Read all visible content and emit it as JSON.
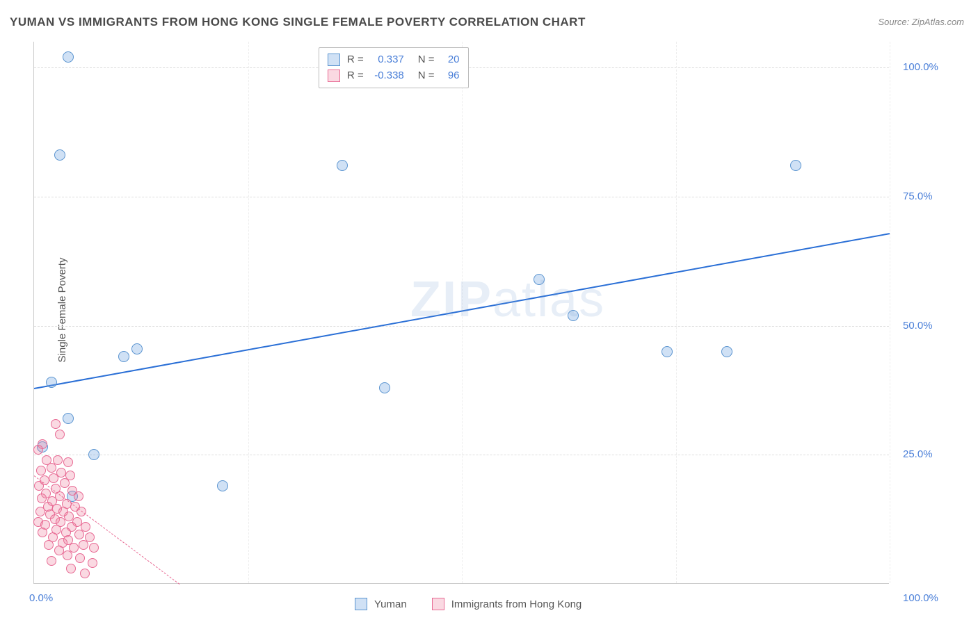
{
  "title": "YUMAN VS IMMIGRANTS FROM HONG KONG SINGLE FEMALE POVERTY CORRELATION CHART",
  "source": "Source: ZipAtlas.com",
  "ylabel": "Single Female Poverty",
  "watermark_bold": "ZIP",
  "watermark_light": "atlas",
  "chart": {
    "type": "scatter",
    "xlim": [
      0,
      100
    ],
    "ylim": [
      0,
      105
    ],
    "background_color": "#ffffff",
    "grid_color": "#dddddd",
    "yticks": [
      {
        "value": 25,
        "label": "25.0%"
      },
      {
        "value": 50,
        "label": "50.0%"
      },
      {
        "value": 75,
        "label": "75.0%"
      },
      {
        "value": 100,
        "label": "100.0%"
      }
    ],
    "xticks": [
      {
        "value": 0,
        "label": "0.0%"
      },
      {
        "value": 100,
        "label": "100.0%"
      }
    ],
    "vgrid_values": [
      25,
      50,
      75,
      100
    ],
    "series": [
      {
        "name": "Yuman",
        "marker_fill": "rgba(120, 170, 225, 0.35)",
        "marker_stroke": "#5a94d0",
        "marker_size": 16,
        "trend": {
          "x1": 0,
          "y1": 38,
          "x2": 100,
          "y2": 68,
          "color": "#2a6fd6",
          "width": 2,
          "dash": false
        },
        "points": [
          {
            "x": 4,
            "y": 102
          },
          {
            "x": 3,
            "y": 83
          },
          {
            "x": 36,
            "y": 81
          },
          {
            "x": 89,
            "y": 81
          },
          {
            "x": 59,
            "y": 59
          },
          {
            "x": 63,
            "y": 52
          },
          {
            "x": 12,
            "y": 45.5
          },
          {
            "x": 10.5,
            "y": 44
          },
          {
            "x": 74,
            "y": 45
          },
          {
            "x": 81,
            "y": 45
          },
          {
            "x": 2,
            "y": 39
          },
          {
            "x": 41,
            "y": 38
          },
          {
            "x": 4,
            "y": 32
          },
          {
            "x": 1,
            "y": 26.5
          },
          {
            "x": 7,
            "y": 25
          },
          {
            "x": 22,
            "y": 19
          },
          {
            "x": 4.5,
            "y": 17
          }
        ]
      },
      {
        "name": "Immigrants from Hong Kong",
        "marker_fill": "rgba(240, 130, 160, 0.30)",
        "marker_stroke": "#e86a94",
        "marker_size": 14,
        "trend": {
          "x1": 0,
          "y1": 21,
          "x2": 17,
          "y2": 0,
          "color": "#e86a94",
          "width": 1,
          "dash": true
        },
        "points": [
          {
            "x": 2.5,
            "y": 31
          },
          {
            "x": 3,
            "y": 29
          },
          {
            "x": 1,
            "y": 27
          },
          {
            "x": 0.5,
            "y": 26
          },
          {
            "x": 1.5,
            "y": 24
          },
          {
            "x": 2.8,
            "y": 24
          },
          {
            "x": 4,
            "y": 23.5
          },
          {
            "x": 0.8,
            "y": 22
          },
          {
            "x": 2,
            "y": 22.5
          },
          {
            "x": 3.2,
            "y": 21.5
          },
          {
            "x": 4.2,
            "y": 21
          },
          {
            "x": 1.2,
            "y": 20
          },
          {
            "x": 2.3,
            "y": 20.5
          },
          {
            "x": 3.6,
            "y": 19.5
          },
          {
            "x": 0.6,
            "y": 19
          },
          {
            "x": 2.5,
            "y": 18.5
          },
          {
            "x": 4.5,
            "y": 18
          },
          {
            "x": 1.4,
            "y": 17.5
          },
          {
            "x": 3,
            "y": 17
          },
          {
            "x": 5.2,
            "y": 17
          },
          {
            "x": 0.9,
            "y": 16.5
          },
          {
            "x": 2.1,
            "y": 16
          },
          {
            "x": 3.8,
            "y": 15.5
          },
          {
            "x": 1.6,
            "y": 15
          },
          {
            "x": 4.8,
            "y": 15
          },
          {
            "x": 2.7,
            "y": 14.5
          },
          {
            "x": 0.7,
            "y": 14
          },
          {
            "x": 3.4,
            "y": 14
          },
          {
            "x": 5.5,
            "y": 14
          },
          {
            "x": 1.9,
            "y": 13.5
          },
          {
            "x": 4.1,
            "y": 13
          },
          {
            "x": 2.4,
            "y": 12.5
          },
          {
            "x": 0.5,
            "y": 12
          },
          {
            "x": 3.1,
            "y": 12
          },
          {
            "x": 5,
            "y": 12
          },
          {
            "x": 1.3,
            "y": 11.5
          },
          {
            "x": 4.4,
            "y": 11
          },
          {
            "x": 2.6,
            "y": 10.5
          },
          {
            "x": 6,
            "y": 11
          },
          {
            "x": 3.7,
            "y": 10
          },
          {
            "x": 1,
            "y": 10
          },
          {
            "x": 5.3,
            "y": 9.5
          },
          {
            "x": 2.2,
            "y": 9
          },
          {
            "x": 4,
            "y": 8.5
          },
          {
            "x": 6.5,
            "y": 9
          },
          {
            "x": 3.3,
            "y": 8
          },
          {
            "x": 1.7,
            "y": 7.5
          },
          {
            "x": 5.8,
            "y": 7.5
          },
          {
            "x": 4.6,
            "y": 7
          },
          {
            "x": 2.9,
            "y": 6.5
          },
          {
            "x": 7,
            "y": 7
          },
          {
            "x": 3.9,
            "y": 5.5
          },
          {
            "x": 5.4,
            "y": 5
          },
          {
            "x": 2,
            "y": 4.5
          },
          {
            "x": 6.8,
            "y": 4
          },
          {
            "x": 4.3,
            "y": 3
          },
          {
            "x": 5.9,
            "y": 2
          }
        ]
      }
    ]
  },
  "legend_top": {
    "rows": [
      {
        "fill": "rgba(120,170,225,0.35)",
        "stroke": "#5a94d0",
        "r_label": "R =",
        "r_val": "0.337",
        "n_label": "N =",
        "n_val": "20"
      },
      {
        "fill": "rgba(240,130,160,0.30)",
        "stroke": "#e86a94",
        "r_label": "R =",
        "r_val": "-0.338",
        "n_label": "N =",
        "n_val": "96"
      }
    ]
  },
  "legend_bottom": {
    "items": [
      {
        "fill": "rgba(120,170,225,0.35)",
        "stroke": "#5a94d0",
        "label": "Yuman"
      },
      {
        "fill": "rgba(240,130,160,0.30)",
        "stroke": "#e86a94",
        "label": "Immigrants from Hong Kong"
      }
    ]
  }
}
